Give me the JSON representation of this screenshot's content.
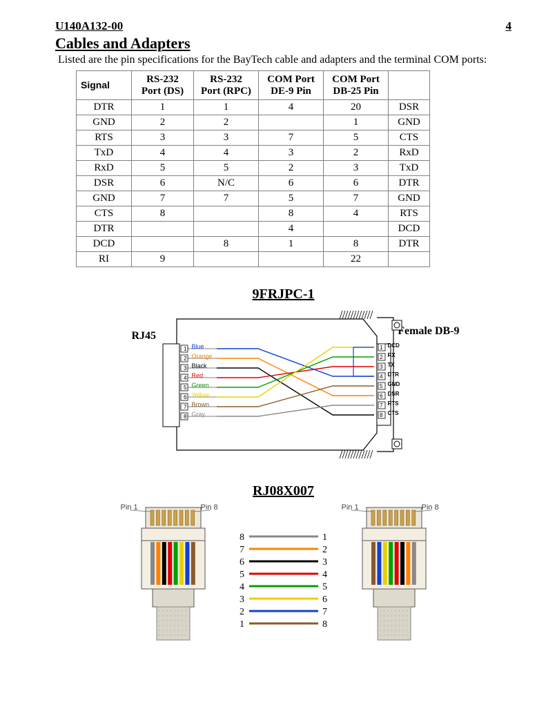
{
  "header": {
    "doc": "U140A132-00",
    "page": "4"
  },
  "section": {
    "title": "Cables and Adapters",
    "intro": "Listed are the pin specifications for the BayTech cable and adapters and the terminal COM ports:"
  },
  "pin_table": {
    "headers": [
      "Signal",
      "RS-232\nPort (DS)",
      "RS-232\nPort (RPC)",
      "COM Port\nDE-9 Pin",
      "COM Port\nDB-25 Pin",
      ""
    ],
    "rows": [
      [
        "DTR",
        "1",
        "1",
        "4",
        "20",
        "DSR"
      ],
      [
        "GND",
        "2",
        "2",
        "",
        "1",
        "GND"
      ],
      [
        "RTS",
        "3",
        "3",
        "7",
        "5",
        "CTS"
      ],
      [
        "TxD",
        "4",
        "4",
        "3",
        "2",
        "RxD"
      ],
      [
        "RxD",
        "5",
        "5",
        "2",
        "3",
        "TxD"
      ],
      [
        "DSR",
        "6",
        "N/C",
        "6",
        "6",
        "DTR"
      ],
      [
        "GND",
        "7",
        "7",
        "5",
        "7",
        "GND"
      ],
      [
        "CTS",
        "8",
        "",
        "8",
        "4",
        "RTS"
      ],
      [
        "DTR",
        "",
        "",
        "4",
        "",
        "DCD"
      ],
      [
        "DCD",
        "",
        "8",
        "1",
        "8",
        "DTR"
      ],
      [
        "RI",
        "9",
        "",
        "",
        "22",
        ""
      ]
    ]
  },
  "diagram1": {
    "title": "9FRJPC-1",
    "left_conn": "RJ45",
    "right_conn": "Female\nDB-9",
    "left_pins": [
      {
        "n": "1",
        "name": "Blue",
        "color": "#1040d0"
      },
      {
        "n": "2",
        "name": "Orange",
        "color": "#ff8000"
      },
      {
        "n": "3",
        "name": "Black",
        "color": "#000000"
      },
      {
        "n": "4",
        "name": "Red",
        "color": "#e00000"
      },
      {
        "n": "5",
        "name": "Green",
        "color": "#00a000"
      },
      {
        "n": "6",
        "name": "Yellow",
        "color": "#e8d000"
      },
      {
        "n": "7",
        "name": "Brown",
        "color": "#8a5a2b"
      },
      {
        "n": "8",
        "name": "Gray",
        "color": "#888888"
      }
    ],
    "right_pins": [
      {
        "n": "1",
        "name": "DCD"
      },
      {
        "n": "2",
        "name": "RX"
      },
      {
        "n": "3",
        "name": "TX"
      },
      {
        "n": "4",
        "name": "DTR"
      },
      {
        "n": "5",
        "name": "GND"
      },
      {
        "n": "6",
        "name": "DSR"
      },
      {
        "n": "7",
        "name": "RTS"
      },
      {
        "n": "8",
        "name": "CTS"
      }
    ],
    "wires": [
      {
        "from": 1,
        "to": 4,
        "color": "#1040d0"
      },
      {
        "from": 2,
        "to": 6,
        "color": "#ff8000"
      },
      {
        "from": 3,
        "to": 8,
        "color": "#000000"
      },
      {
        "from": 4,
        "to": 3,
        "color": "#e00000"
      },
      {
        "from": 5,
        "to": 2,
        "color": "#00a000"
      },
      {
        "from": 6,
        "to": 1,
        "color": "#e8d000"
      },
      {
        "from": 7,
        "to": 5,
        "color": "#8a5a2b"
      },
      {
        "from": 8,
        "to": 7,
        "color": "#888888"
      }
    ],
    "extra_wire_4_to_1": {
      "color": "#1040d0"
    }
  },
  "diagram2": {
    "title": "RJ08X007",
    "pin1_label": "Pin 1",
    "pin8_label": "Pin 8",
    "wire_colors": [
      "#888888",
      "#ff8000",
      "#000000",
      "#e00000",
      "#00a000",
      "#e8d000",
      "#1040d0",
      "#8a5a2b"
    ],
    "wire_colors_right": [
      "#8a5a2b",
      "#1040d0",
      "#e8d000",
      "#00a000",
      "#e00000",
      "#000000",
      "#ff8000",
      "#888888"
    ],
    "map": [
      {
        "l": "8",
        "r": "1",
        "color": "#888888"
      },
      {
        "l": "7",
        "r": "2",
        "color": "#ff8000"
      },
      {
        "l": "6",
        "r": "3",
        "color": "#000000"
      },
      {
        "l": "5",
        "r": "4",
        "color": "#e00000"
      },
      {
        "l": "4",
        "r": "5",
        "color": "#00a000"
      },
      {
        "l": "3",
        "r": "6",
        "color": "#e8d000"
      },
      {
        "l": "2",
        "r": "7",
        "color": "#1040d0"
      },
      {
        "l": "1",
        "r": "8",
        "color": "#8a5a2b"
      }
    ]
  }
}
